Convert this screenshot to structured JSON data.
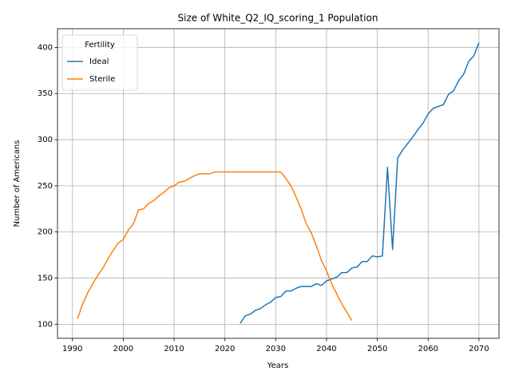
{
  "chart_data": {
    "type": "line",
    "title": "Size of White_Q2_IQ_scoring_1 Population",
    "x_label": "Years",
    "y_label": "Number of Americans",
    "x": [
      1991,
      1992,
      1993,
      1994,
      1995,
      1996,
      1997,
      1998,
      1999,
      2000,
      2001,
      2002,
      2003,
      2004,
      2005,
      2006,
      2007,
      2008,
      2009,
      2010,
      2011,
      2012,
      2013,
      2014,
      2015,
      2016,
      2017,
      2018,
      2019,
      2020,
      2021,
      2022,
      2023,
      2024,
      2025,
      2026,
      2027,
      2028,
      2029,
      2030,
      2031,
      2032,
      2033,
      2034,
      2035,
      2036,
      2037,
      2038,
      2039,
      2040,
      2041,
      2042,
      2043,
      2044,
      2045,
      2046,
      2047,
      2048,
      2049,
      2050,
      2051,
      2052,
      2053,
      2054,
      2055,
      2056,
      2057,
      2058,
      2059,
      2060,
      2061,
      2062,
      2063,
      2064,
      2065,
      2066,
      2067,
      2068,
      2069,
      2070
    ],
    "series": [
      {
        "name": "Ideal",
        "color": "#1f77b4",
        "values": [
          null,
          null,
          null,
          null,
          null,
          null,
          null,
          null,
          null,
          null,
          null,
          null,
          null,
          null,
          null,
          null,
          null,
          null,
          null,
          null,
          null,
          null,
          null,
          null,
          null,
          null,
          null,
          null,
          null,
          null,
          null,
          null,
          101,
          109,
          111,
          115,
          117,
          121,
          124,
          129,
          130,
          136,
          136,
          139,
          141,
          141,
          141,
          144,
          142,
          147,
          149,
          151,
          156,
          156,
          161,
          162,
          168,
          168,
          174,
          173,
          174,
          270,
          181,
          280,
          289,
          296,
          303,
          311,
          318,
          328,
          334,
          336,
          338,
          349,
          353,
          364,
          371,
          385,
          391,
          405
        ]
      },
      {
        "name": "Sterile",
        "color": "#ff7f0e",
        "values": [
          106,
          122,
          134,
          144,
          153,
          161,
          171,
          180,
          188,
          192,
          202,
          209,
          224,
          225,
          231,
          234,
          239,
          243,
          248,
          250,
          254,
          255,
          258,
          261,
          263,
          263,
          263,
          265,
          265,
          265,
          265,
          265,
          265,
          265,
          265,
          265,
          265,
          265,
          265,
          265,
          265,
          258,
          250,
          238,
          225,
          209,
          199,
          185,
          169,
          158,
          144,
          133,
          122,
          113,
          104,
          null,
          null,
          null,
          null,
          null,
          null,
          null,
          null,
          null,
          null,
          null,
          null,
          null,
          null,
          null,
          null,
          null,
          null,
          null,
          null,
          null,
          null,
          null,
          null,
          null
        ]
      }
    ],
    "xlim": [
      1987.05,
      2073.95
    ],
    "xticks": [
      1990,
      2000,
      2010,
      2020,
      2030,
      2040,
      2050,
      2060,
      2070
    ],
    "ylim": [
      84.75,
      420.25
    ],
    "yticks": [
      100,
      150,
      200,
      250,
      300,
      350,
      400
    ],
    "grid": true,
    "legend": "upper left",
    "legend_title": "Fertility"
  }
}
